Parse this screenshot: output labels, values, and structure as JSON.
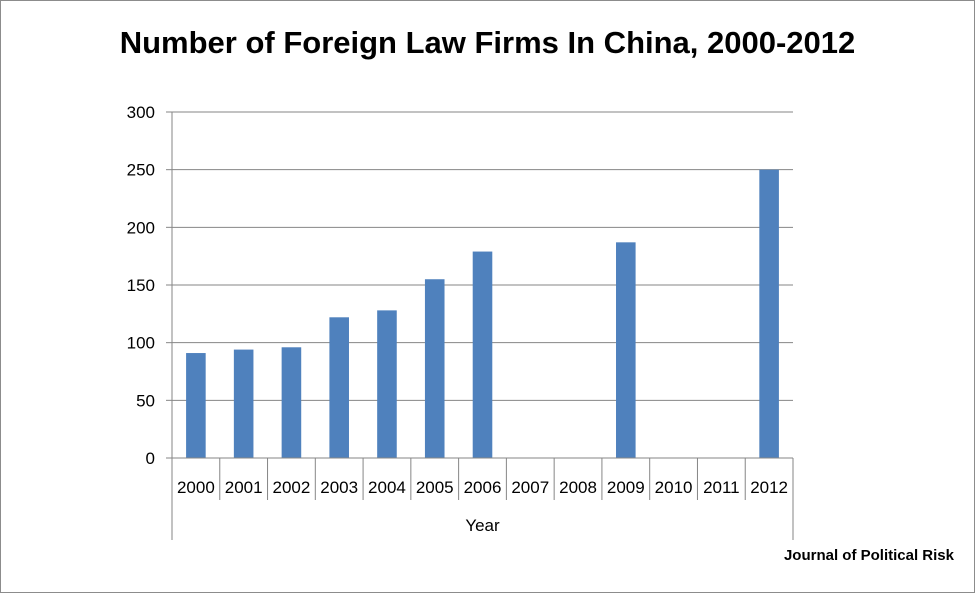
{
  "chart_data": {
    "type": "bar",
    "title": "Number of Foreign Law Firms In China, 2000-2012",
    "xlabel": "Year",
    "ylabel": "",
    "categories": [
      "2000",
      "2001",
      "2002",
      "2003",
      "2004",
      "2005",
      "2006",
      "2007",
      "2008",
      "2009",
      "2010",
      "2011",
      "2012"
    ],
    "values": [
      91,
      94,
      96,
      122,
      128,
      155,
      179,
      null,
      null,
      187,
      null,
      null,
      250
    ],
    "ylim": [
      0,
      300
    ],
    "yticks": [
      0,
      50,
      100,
      150,
      200,
      250,
      300
    ],
    "grid": true,
    "legend": "none",
    "bar_color": "#4f81bd"
  },
  "source": "Journal of Political Risk"
}
